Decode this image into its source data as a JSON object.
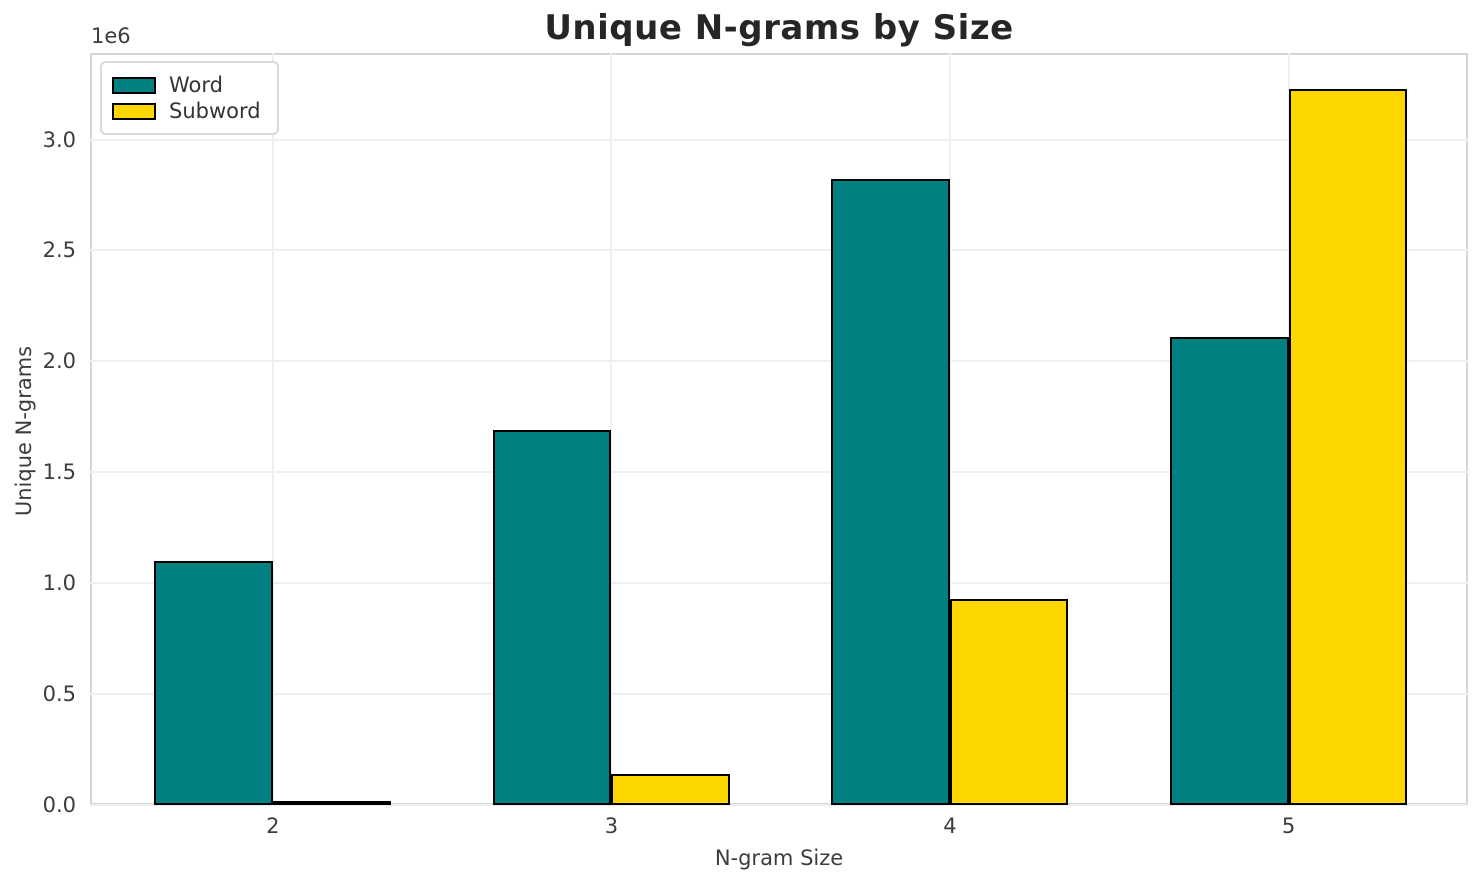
{
  "chart_data": {
    "type": "bar",
    "title": "Unique N-grams by Size",
    "xlabel": "N-gram Size",
    "ylabel": "Unique N-grams",
    "y_offset_text": "1e6",
    "categories": [
      "2",
      "3",
      "4",
      "5"
    ],
    "category_x": [
      2,
      3,
      4,
      5
    ],
    "series": [
      {
        "name": "Word",
        "color": "#008080",
        "values": [
          1100000,
          1690000,
          2820000,
          2110000
        ]
      },
      {
        "name": "Subword",
        "color": "#FFD700",
        "values": [
          13000,
          140000,
          930000,
          3230000
        ]
      }
    ],
    "bar_width_units": 0.35,
    "bar_edge_color": "#000000",
    "xlim": [
      1.46,
      5.53
    ],
    "ylim": [
      0,
      3390000
    ],
    "yticks": [
      {
        "label": "0.0",
        "value": 0
      },
      {
        "label": "0.5",
        "value": 500000
      },
      {
        "label": "1.0",
        "value": 1000000
      },
      {
        "label": "1.5",
        "value": 1500000
      },
      {
        "label": "2.0",
        "value": 2000000
      },
      {
        "label": "2.5",
        "value": 2500000
      },
      {
        "label": "3.0",
        "value": 3000000
      }
    ],
    "grid": true,
    "legend_position": "upper left"
  },
  "style": {
    "grid_color": "#efefef",
    "spine_color": "#d6d6d6",
    "text_color": "#3d3d3d",
    "title_color": "#262626",
    "background_color": "#ffffff"
  }
}
